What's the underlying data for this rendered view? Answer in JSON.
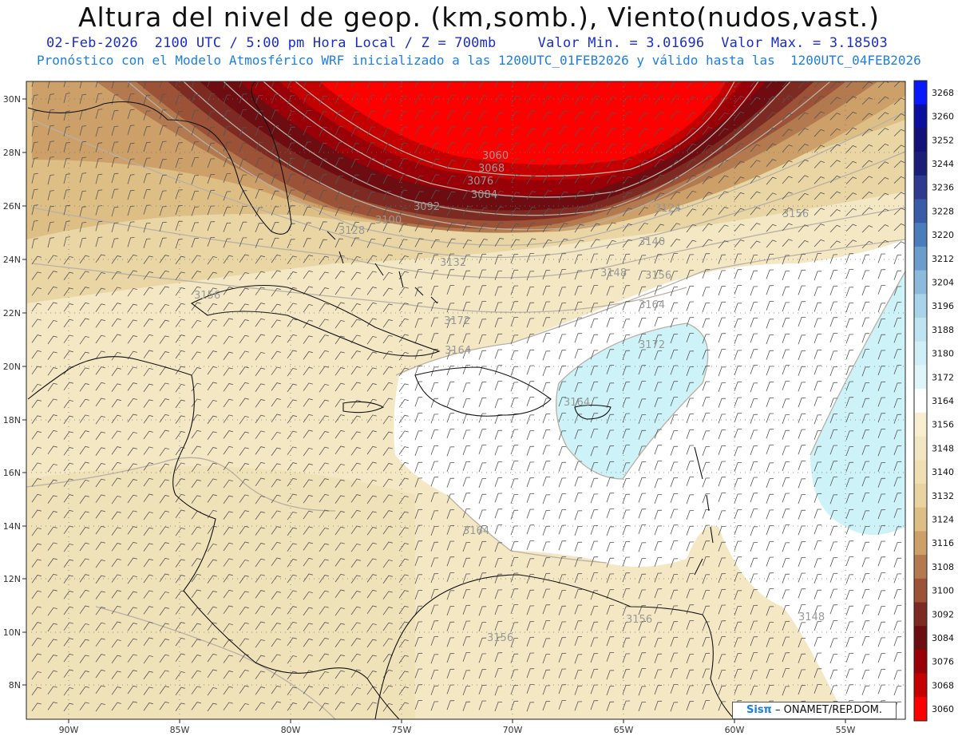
{
  "header": {
    "title": "Altura del nivel de geop. (km,somb.), Viento(nudos,vast.)",
    "line1": "02-Feb-2026  2100 UTC / 5:00 pm Hora Local / Z = 700mb     Valor Min. = 3.01696  Valor Max. = 3.18503",
    "line2": "Pronóstico con el Modelo Atmosférico WRF inicializado a las 1200UTC_01FEB2026 y válido hasta las  1200UTC_04FEB2026"
  },
  "lat_ticks": [
    "30N",
    "28N",
    "26N",
    "24N",
    "22N",
    "20N",
    "18N",
    "16N",
    "14N",
    "12N",
    "10N",
    "8N"
  ],
  "lon_ticks": [
    "90W",
    "85W",
    "80W",
    "75W",
    "70W",
    "65W",
    "60W",
    "55W"
  ],
  "colorbar": {
    "labels": [
      "3268",
      "3260",
      "3252",
      "3244",
      "3236",
      "3228",
      "3220",
      "3212",
      "3204",
      "3196",
      "3188",
      "3180",
      "3172",
      "3164",
      "3156",
      "3148",
      "3140",
      "3132",
      "3124",
      "3116",
      "3108",
      "3100",
      "3092",
      "3084",
      "3076",
      "3068",
      "3060"
    ],
    "colors": [
      "#0a18ff",
      "#0b0f9e",
      "#14107a",
      "#1a1e78",
      "#2e3a90",
      "#3a5ca8",
      "#4a7dbc",
      "#6b9dcc",
      "#8cb9dc",
      "#a9d3ea",
      "#bfe3f0",
      "#cfeef5",
      "#def6f9",
      "#ffffff",
      "#f8eed2",
      "#f3e6c2",
      "#efdfb3",
      "#e9d3a0",
      "#ddbf86",
      "#cda06a",
      "#b47a4f",
      "#9c5236",
      "#7d2a22",
      "#6d0d12",
      "#9a0008",
      "#c40000",
      "#ff0000"
    ]
  },
  "contour_labels": [
    "3060",
    "3068",
    "3076",
    "3084",
    "3092",
    "3100",
    "3128",
    "3124",
    "3132",
    "3156",
    "3140",
    "3148",
    "3156",
    "3164",
    "3172",
    "3156",
    "3164",
    "3172",
    "3164",
    "3156",
    "3148",
    "3156",
    "3164"
  ],
  "credit": {
    "brand": "Sisπ",
    "text": " – ONAMET/REP.DOM."
  },
  "colors": {
    "land": "#f1e4bf",
    "red_core": "#ff0000",
    "ocean_low": "#f7efd6",
    "white_zone": "#ffffff",
    "cyan_zone": "#cdf2f7"
  }
}
